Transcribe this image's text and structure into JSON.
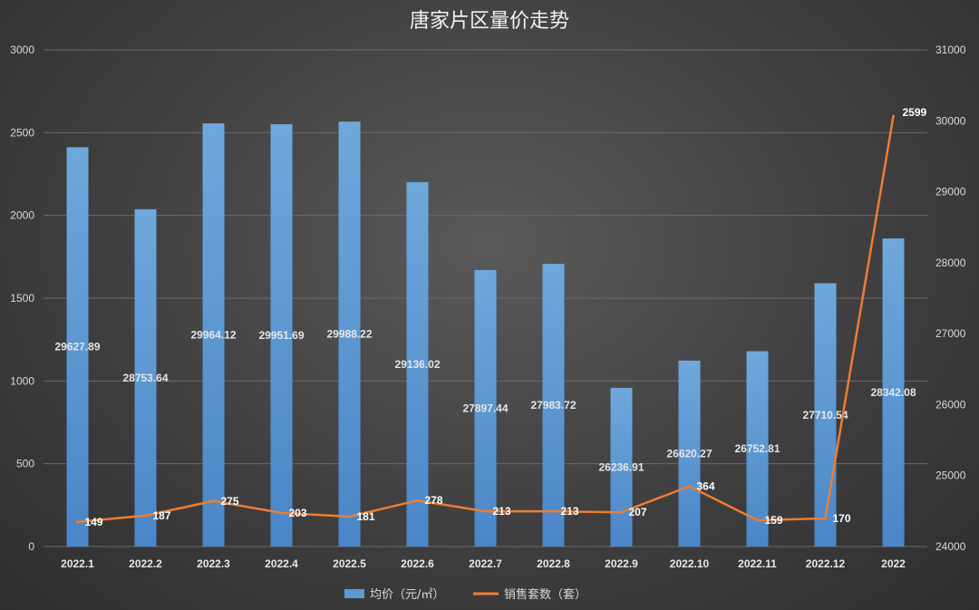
{
  "chart_data": {
    "type": "bar+line",
    "title": "唐家片区量价走势",
    "categories": [
      "2022.1",
      "2022.2",
      "2022.3",
      "2022.4",
      "2022.5",
      "2022.6",
      "2022.7",
      "2022.8",
      "2022.9",
      "2022.10",
      "2022.11",
      "2022.12",
      "2022"
    ],
    "series": [
      {
        "name": "均价（元/㎡）",
        "type": "bar",
        "axis": "right",
        "color": "#5b9bd5",
        "values": [
          29627.89,
          28753.64,
          29964.12,
          29951.69,
          29988.22,
          29136.02,
          27897.44,
          27983.72,
          26236.91,
          26620.27,
          26752.81,
          27710.54,
          28342.08
        ],
        "labels": [
          "29627.89",
          "28753.64",
          "29964.12",
          "29951.69",
          "29988.22",
          "29136.02",
          "27897.44",
          "27983.72",
          "26236.91",
          "26620.27",
          "26752.81",
          "27710.54",
          "28342.08"
        ]
      },
      {
        "name": "销售套数（套）",
        "type": "line",
        "axis": "left",
        "color": "#ed7d31",
        "values": [
          149,
          187,
          275,
          203,
          181,
          278,
          213,
          213,
          207,
          364,
          159,
          170,
          2599
        ],
        "labels": [
          "149",
          "187",
          "275",
          "203",
          "181",
          "278",
          "213",
          "213",
          "207",
          "364",
          "159",
          "170",
          "2599"
        ]
      }
    ],
    "left_axis": {
      "min": 0,
      "max": 3000,
      "ticks": [
        "0",
        "500",
        "1000",
        "1500",
        "2000",
        "2500",
        "3000"
      ]
    },
    "right_axis": {
      "min": 24000,
      "max": 31000,
      "ticks": [
        "24000",
        "25000",
        "26000",
        "27000",
        "28000",
        "29000",
        "30000",
        "31000"
      ]
    },
    "legend_position": "bottom",
    "grid": true
  }
}
